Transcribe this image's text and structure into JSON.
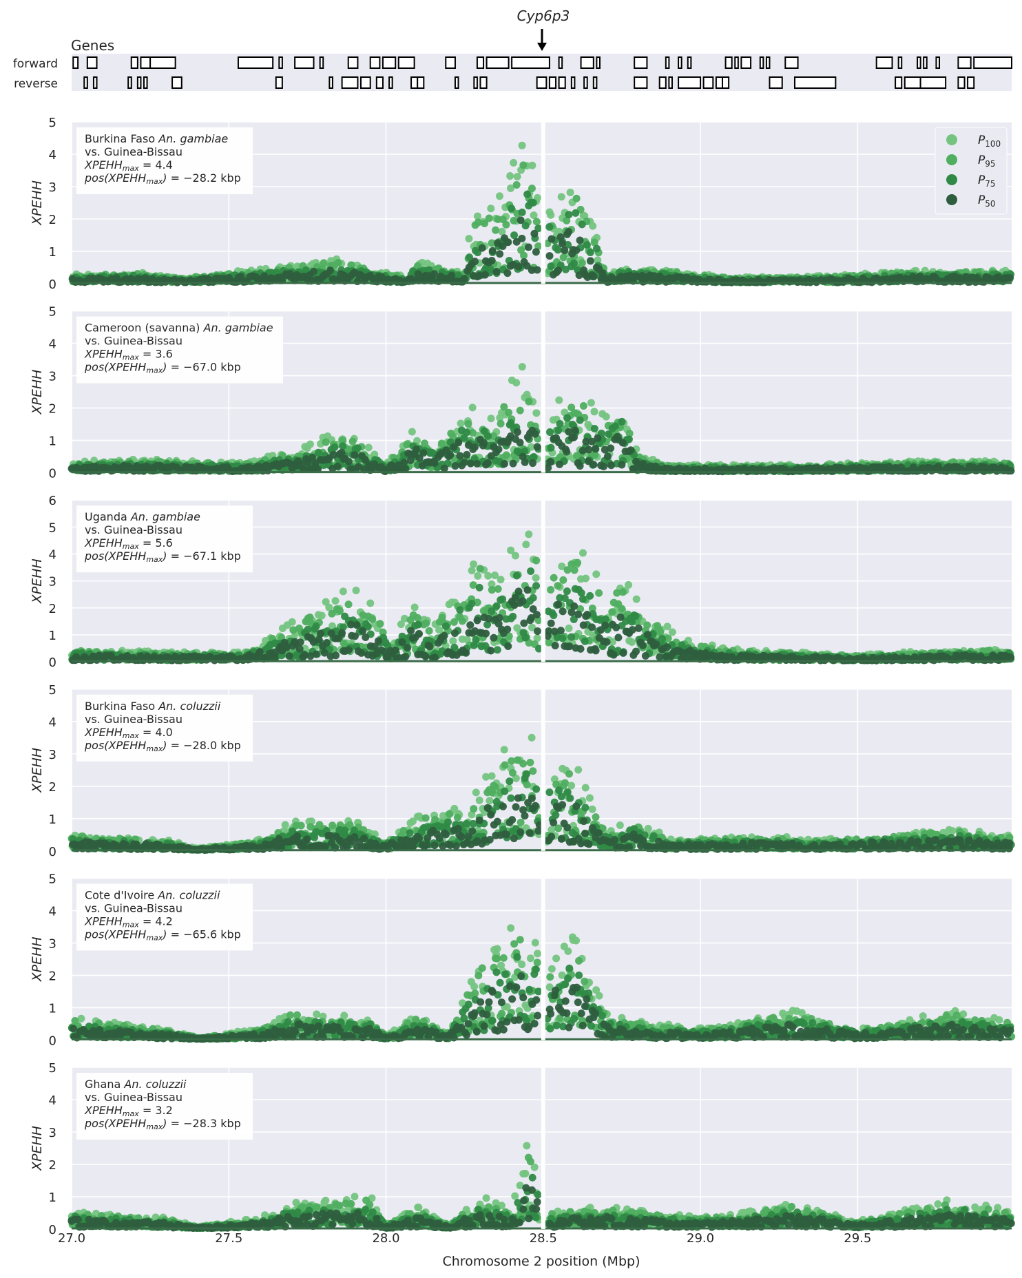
{
  "figure": {
    "gene_label": "Cyp6p3",
    "genes_title": "Genes",
    "strand_labels": [
      "forward",
      "reverse"
    ],
    "xlabel": "Chromosome 2 position (Mbp)",
    "ylabel": "XPEHH"
  },
  "colors": {
    "background": "#eaeaf2",
    "grid": "#ffffff",
    "P100": "#74c47f",
    "P95": "#4fae5f",
    "P75": "#2f8a46",
    "P50": "#2e5e3e",
    "baseline": "#3a6b48"
  },
  "chart_data": {
    "type": "scatter",
    "xlim": [
      27.0,
      29.99
    ],
    "x_ticks": [
      27.0,
      27.5,
      28.0,
      28.5,
      29.0,
      29.5
    ],
    "x_tick_labels": [
      "27.0",
      "27.5",
      "28.0",
      "28.5",
      "29.0",
      "29.5"
    ],
    "legend": {
      "placement": "top-right",
      "entries": [
        "P100",
        "P95",
        "P75",
        "P50"
      ]
    },
    "genes": {
      "forward": [
        [
          27.005,
          27.02
        ],
        [
          27.05,
          27.08
        ],
        [
          27.19,
          27.21
        ],
        [
          27.22,
          27.25
        ],
        [
          27.25,
          27.33
        ],
        [
          27.53,
          27.64
        ],
        [
          27.66,
          27.67
        ],
        [
          27.71,
          27.77
        ],
        [
          27.79,
          27.8
        ],
        [
          27.88,
          27.91
        ],
        [
          27.95,
          27.98
        ],
        [
          27.99,
          28.03
        ],
        [
          28.04,
          28.09
        ],
        [
          28.19,
          28.22
        ],
        [
          28.29,
          28.31
        ],
        [
          28.32,
          28.39
        ],
        [
          28.4,
          28.52
        ],
        [
          28.55,
          28.56
        ],
        [
          28.62,
          28.66
        ],
        [
          28.67,
          28.68
        ],
        [
          28.79,
          28.83
        ],
        [
          28.89,
          28.9
        ],
        [
          28.93,
          28.94
        ],
        [
          28.96,
          28.97
        ],
        [
          29.08,
          29.1
        ],
        [
          29.11,
          29.12
        ],
        [
          29.13,
          29.16
        ],
        [
          29.19,
          29.2
        ],
        [
          29.21,
          29.22
        ],
        [
          29.27,
          29.31
        ],
        [
          29.56,
          29.61
        ],
        [
          29.63,
          29.64
        ],
        [
          29.69,
          29.7
        ],
        [
          29.71,
          29.72
        ],
        [
          29.75,
          29.76
        ],
        [
          29.82,
          29.86
        ],
        [
          29.87,
          29.99
        ]
      ],
      "reverse": [
        [
          27.04,
          27.05
        ],
        [
          27.07,
          27.08
        ],
        [
          27.18,
          27.19
        ],
        [
          27.21,
          27.22
        ],
        [
          27.23,
          27.24
        ],
        [
          27.32,
          27.35
        ],
        [
          27.65,
          27.67
        ],
        [
          27.82,
          27.83
        ],
        [
          27.86,
          27.91
        ],
        [
          27.92,
          27.95
        ],
        [
          27.97,
          27.99
        ],
        [
          28.01,
          28.02
        ],
        [
          28.08,
          28.1
        ],
        [
          28.1,
          28.12
        ],
        [
          28.22,
          28.23
        ],
        [
          28.28,
          28.29
        ],
        [
          28.3,
          28.32
        ],
        [
          28.48,
          28.51
        ],
        [
          28.52,
          28.54
        ],
        [
          28.55,
          28.57
        ],
        [
          28.59,
          28.6
        ],
        [
          28.63,
          28.64
        ],
        [
          28.66,
          28.67
        ],
        [
          28.79,
          28.83
        ],
        [
          28.87,
          28.89
        ],
        [
          28.9,
          28.91
        ],
        [
          28.93,
          29.0
        ],
        [
          29.01,
          29.04
        ],
        [
          29.05,
          29.07
        ],
        [
          29.07,
          29.09
        ],
        [
          29.22,
          29.26
        ],
        [
          29.3,
          29.43
        ],
        [
          29.62,
          29.64
        ],
        [
          29.65,
          29.7
        ],
        [
          29.7,
          29.78
        ],
        [
          29.82,
          29.84
        ],
        [
          29.85,
          29.87
        ]
      ]
    },
    "panels": [
      {
        "label_line1": "Burkina Faso ",
        "label_species": "An. gambiae",
        "label_line2": "vs. Guinea-Bissau",
        "stat_max": "XPEHH",
        "stat_max_sub": "max",
        "max_value": " = 4.4",
        "pos_value": " = −28.2 kbp",
        "ylim": [
          0,
          5
        ],
        "y_ticks": [
          0,
          1,
          2,
          3,
          4,
          5
        ],
        "xpehh_max": 4.4,
        "pos_kbp": -28.2,
        "profile": [
          [
            27.0,
            0.25
          ],
          [
            27.2,
            0.3
          ],
          [
            27.35,
            0.15
          ],
          [
            27.6,
            0.4
          ],
          [
            27.85,
            0.7
          ],
          [
            27.95,
            0.4
          ],
          [
            28.05,
            0.2
          ],
          [
            28.1,
            0.6
          ],
          [
            28.25,
            0.3
          ],
          [
            28.27,
            1.8
          ],
          [
            28.35,
            2.2
          ],
          [
            28.44,
            3.9
          ],
          [
            28.48,
            3.0
          ],
          [
            28.5,
            0.0
          ],
          [
            28.52,
            2.4
          ],
          [
            28.6,
            2.9
          ],
          [
            28.67,
            1.4
          ],
          [
            28.7,
            0.2
          ],
          [
            28.75,
            0.5
          ],
          [
            28.9,
            0.35
          ],
          [
            29.1,
            0.15
          ],
          [
            29.4,
            0.2
          ],
          [
            29.7,
            0.35
          ],
          [
            29.99,
            0.35
          ]
        ]
      },
      {
        "label_line1": "Cameroon (savanna) ",
        "label_species": "An. gambiae",
        "label_line2": "vs. Guinea-Bissau",
        "stat_max": "XPEHH",
        "stat_max_sub": "max",
        "max_value": " = 3.6",
        "pos_value": " = −67.0 kbp",
        "ylim": [
          0,
          5
        ],
        "y_ticks": [
          0,
          1,
          2,
          3,
          4,
          5
        ],
        "xpehh_max": 3.6,
        "pos_kbp": -67.0,
        "profile": [
          [
            27.0,
            0.3
          ],
          [
            27.25,
            0.35
          ],
          [
            27.55,
            0.25
          ],
          [
            27.7,
            0.6
          ],
          [
            27.85,
            1.1
          ],
          [
            27.93,
            0.9
          ],
          [
            28.0,
            0.2
          ],
          [
            28.1,
            1.3
          ],
          [
            28.15,
            0.8
          ],
          [
            28.25,
            1.8
          ],
          [
            28.35,
            1.6
          ],
          [
            28.43,
            3.0
          ],
          [
            28.48,
            2.0
          ],
          [
            28.5,
            0.0
          ],
          [
            28.52,
            1.8
          ],
          [
            28.6,
            2.3
          ],
          [
            28.7,
            1.6
          ],
          [
            28.75,
            2.0
          ],
          [
            28.8,
            0.5
          ],
          [
            28.9,
            0.2
          ],
          [
            29.3,
            0.2
          ],
          [
            29.7,
            0.3
          ],
          [
            29.99,
            0.3
          ]
        ]
      },
      {
        "label_line1": "Uganda ",
        "label_species": "An. gambiae",
        "label_line2": "vs. Guinea-Bissau",
        "stat_max": "XPEHH",
        "stat_max_sub": "max",
        "max_value": " = 5.6",
        "pos_value": " = −67.1 kbp",
        "ylim": [
          0,
          6
        ],
        "y_ticks": [
          0,
          1,
          2,
          3,
          4,
          5,
          6
        ],
        "xpehh_max": 5.6,
        "pos_kbp": -67.1,
        "profile": [
          [
            27.0,
            0.4
          ],
          [
            27.3,
            0.3
          ],
          [
            27.55,
            0.3
          ],
          [
            27.7,
            1.3
          ],
          [
            27.9,
            2.5
          ],
          [
            27.98,
            1.5
          ],
          [
            28.02,
            0.5
          ],
          [
            28.08,
            2.0
          ],
          [
            28.15,
            1.2
          ],
          [
            28.3,
            3.6
          ],
          [
            28.35,
            2.8
          ],
          [
            28.44,
            4.8
          ],
          [
            28.48,
            4.0
          ],
          [
            28.5,
            0.0
          ],
          [
            28.52,
            3.7
          ],
          [
            28.62,
            4.0
          ],
          [
            28.7,
            2.2
          ],
          [
            28.75,
            2.8
          ],
          [
            28.85,
            1.5
          ],
          [
            28.95,
            0.7
          ],
          [
            29.1,
            0.4
          ],
          [
            29.5,
            0.2
          ],
          [
            29.8,
            0.4
          ],
          [
            29.99,
            0.4
          ]
        ]
      },
      {
        "label_line1": "Burkina Faso ",
        "label_species": "An. coluzzii",
        "label_line2": "vs. Guinea-Bissau",
        "stat_max": "XPEHH",
        "stat_max_sub": "max",
        "max_value": " = 4.0",
        "pos_value": " = −28.0 kbp",
        "ylim": [
          0,
          5
        ],
        "y_ticks": [
          0,
          1,
          2,
          3,
          4,
          5
        ],
        "xpehh_max": 4.0,
        "pos_kbp": -28.0,
        "profile": [
          [
            27.0,
            0.45
          ],
          [
            27.3,
            0.3
          ],
          [
            27.4,
            0.05
          ],
          [
            27.6,
            0.3
          ],
          [
            27.7,
            0.8
          ],
          [
            27.9,
            0.8
          ],
          [
            28.0,
            0.25
          ],
          [
            28.1,
            1.0
          ],
          [
            28.25,
            1.2
          ],
          [
            28.35,
            2.6
          ],
          [
            28.45,
            3.4
          ],
          [
            28.48,
            2.6
          ],
          [
            28.5,
            0.0
          ],
          [
            28.52,
            2.4
          ],
          [
            28.6,
            2.4
          ],
          [
            28.7,
            0.5
          ],
          [
            28.8,
            0.9
          ],
          [
            28.9,
            0.3
          ],
          [
            29.2,
            0.4
          ],
          [
            29.4,
            0.3
          ],
          [
            29.8,
            0.6
          ],
          [
            29.99,
            0.4
          ]
        ]
      },
      {
        "label_line1": "Cote d'Ivoire ",
        "label_species": "An. coluzzii",
        "label_line2": "vs. Guinea-Bissau",
        "stat_max": "XPEHH",
        "stat_max_sub": "max",
        "max_value": " = 4.2",
        "pos_value": " = −65.6 kbp",
        "ylim": [
          0,
          5
        ],
        "y_ticks": [
          0,
          1,
          2,
          3,
          4,
          5
        ],
        "xpehh_max": 4.2,
        "pos_kbp": -65.6,
        "profile": [
          [
            27.0,
            0.6
          ],
          [
            27.3,
            0.3
          ],
          [
            27.4,
            0.05
          ],
          [
            27.6,
            0.3
          ],
          [
            27.7,
            0.8
          ],
          [
            27.95,
            0.6
          ],
          [
            28.0,
            0.1
          ],
          [
            28.1,
            0.7
          ],
          [
            28.2,
            0.2
          ],
          [
            28.3,
            2.3
          ],
          [
            28.42,
            3.4
          ],
          [
            28.48,
            2.8
          ],
          [
            28.5,
            0.0
          ],
          [
            28.52,
            2.4
          ],
          [
            28.6,
            3.0
          ],
          [
            28.7,
            0.7
          ],
          [
            28.8,
            0.5
          ],
          [
            29.0,
            0.3
          ],
          [
            29.3,
            0.8
          ],
          [
            29.5,
            0.3
          ],
          [
            29.8,
            0.8
          ],
          [
            29.99,
            0.5
          ]
        ]
      },
      {
        "label_line1": "Ghana ",
        "label_species": "An. coluzzii",
        "label_line2": "vs. Guinea-Bissau",
        "stat_max": "XPEHH",
        "stat_max_sub": "max",
        "max_value": " = 3.2",
        "pos_value": " = −28.3 kbp",
        "ylim": [
          0,
          5
        ],
        "y_ticks": [
          0,
          1,
          2,
          3,
          4,
          5
        ],
        "xpehh_max": 3.2,
        "pos_kbp": -28.3,
        "profile": [
          [
            27.0,
            0.5
          ],
          [
            27.3,
            0.3
          ],
          [
            27.4,
            0.05
          ],
          [
            27.6,
            0.3
          ],
          [
            27.7,
            0.7
          ],
          [
            27.95,
            0.9
          ],
          [
            28.0,
            0.1
          ],
          [
            28.1,
            0.6
          ],
          [
            28.2,
            0.1
          ],
          [
            28.3,
            0.9
          ],
          [
            28.4,
            0.5
          ],
          [
            28.45,
            2.5
          ],
          [
            28.48,
            1.8
          ],
          [
            28.5,
            0.0
          ],
          [
            28.53,
            0.5
          ],
          [
            28.7,
            0.6
          ],
          [
            29.0,
            0.3
          ],
          [
            29.3,
            0.7
          ],
          [
            29.5,
            0.2
          ],
          [
            29.8,
            0.8
          ],
          [
            29.99,
            0.5
          ]
        ]
      }
    ]
  }
}
